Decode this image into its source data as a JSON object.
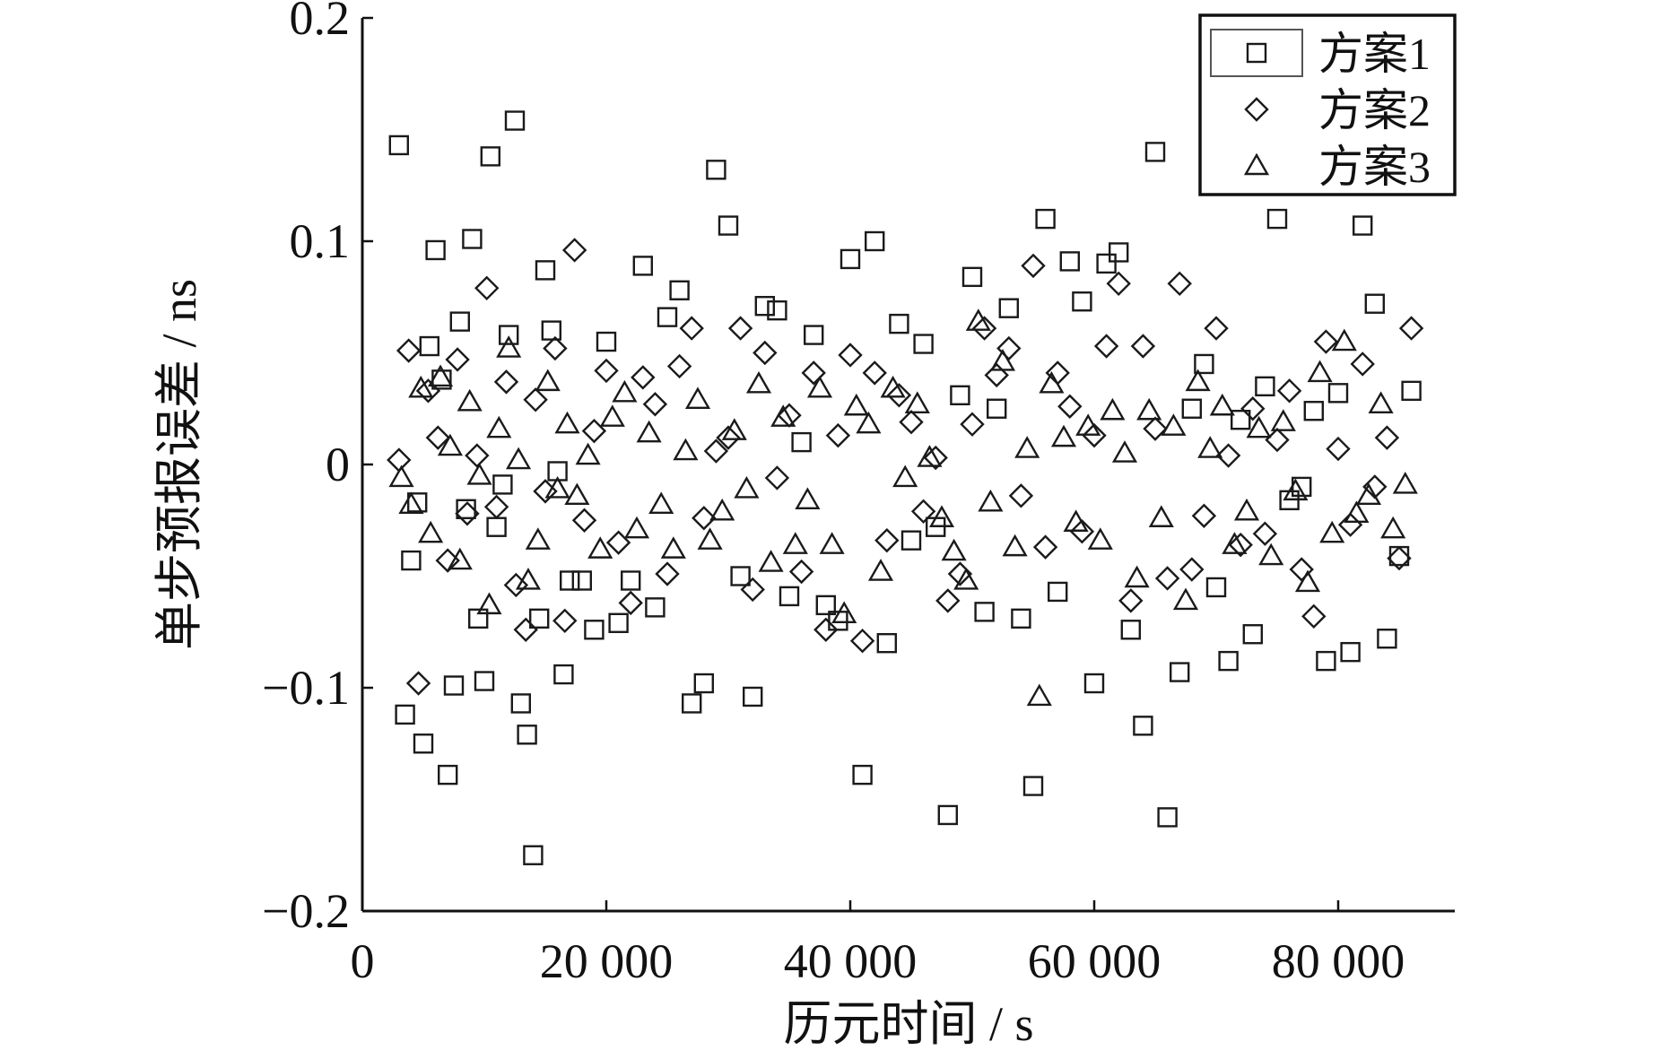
{
  "chart_data": {
    "type": "scatter",
    "title": "",
    "xlabel": "历元时间 / s",
    "ylabel": "单步预报误差 / ns",
    "xlim": [
      0,
      90000
    ],
    "ylim": [
      -0.2,
      0.2
    ],
    "xticks": [
      0,
      20000,
      40000,
      60000,
      80000
    ],
    "xtick_labels": [
      "0",
      "20 000",
      "40 000",
      "60 000",
      "80 000"
    ],
    "yticks": [
      0.2,
      0.1,
      0,
      -0.1,
      -0.2
    ],
    "ytick_labels": [
      "0.2",
      "0.1",
      "0",
      "−0.1",
      "−0.2"
    ],
    "grid": false,
    "legend_position": "top-right",
    "series": [
      {
        "name": "方案1",
        "marker": "square",
        "x": [
          3000,
          3500,
          4000,
          4500,
          5000,
          5500,
          6000,
          6500,
          7000,
          7500,
          8000,
          8500,
          9000,
          9500,
          10000,
          10500,
          11000,
          11500,
          12000,
          12500,
          13000,
          13500,
          14000,
          14500,
          15000,
          15500,
          16000,
          16500,
          17000,
          18000,
          19000,
          20000,
          21000,
          22000,
          23000,
          24000,
          25000,
          26000,
          27000,
          28000,
          29000,
          30000,
          31000,
          32000,
          33000,
          34000,
          35000,
          36000,
          37000,
          38000,
          39000,
          40000,
          41000,
          42000,
          43000,
          44000,
          45000,
          46000,
          47000,
          48000,
          49000,
          50000,
          51000,
          52000,
          53000,
          54000,
          55000,
          56000,
          57000,
          58000,
          59000,
          60000,
          61000,
          62000,
          63000,
          64000,
          65000,
          66000,
          67000,
          68000,
          69000,
          70000,
          71000,
          72000,
          73000,
          74000,
          75000,
          76000,
          77000,
          78000,
          79000,
          80000,
          81000,
          82000,
          83000,
          84000,
          85000,
          86000
        ],
        "y": [
          0.143,
          -0.112,
          -0.043,
          -0.017,
          -0.125,
          0.053,
          0.096,
          0.038,
          -0.139,
          -0.099,
          0.064,
          -0.02,
          0.101,
          -0.069,
          -0.097,
          0.138,
          -0.028,
          -0.009,
          0.058,
          0.154,
          -0.107,
          -0.121,
          -0.175,
          -0.069,
          0.087,
          0.06,
          -0.003,
          -0.094,
          -0.052,
          -0.052,
          -0.074,
          0.055,
          -0.071,
          -0.052,
          0.089,
          -0.064,
          0.066,
          0.078,
          -0.107,
          -0.098,
          0.132,
          0.107,
          -0.05,
          -0.104,
          0.071,
          0.069,
          -0.059,
          0.01,
          0.058,
          -0.063,
          -0.07,
          0.092,
          -0.139,
          0.1,
          -0.08,
          0.063,
          -0.034,
          0.054,
          -0.028,
          -0.157,
          0.031,
          0.084,
          -0.066,
          0.025,
          0.07,
          -0.069,
          -0.144,
          0.11,
          -0.057,
          0.091,
          0.073,
          -0.098,
          0.09,
          0.095,
          -0.074,
          -0.117,
          0.14,
          -0.158,
          -0.093,
          0.025,
          0.045,
          -0.055,
          -0.088,
          0.02,
          -0.076,
          0.035,
          0.11,
          -0.016,
          -0.01,
          0.024,
          -0.088,
          0.032,
          -0.084,
          0.107,
          0.072,
          -0.078,
          -0.041,
          0.033
        ]
      },
      {
        "name": "方案2",
        "marker": "diamond",
        "x": [
          3000,
          3800,
          4600,
          5400,
          6200,
          7000,
          7800,
          8600,
          9400,
          10200,
          11000,
          11800,
          12600,
          13400,
          14200,
          15000,
          15800,
          16600,
          17400,
          18200,
          19000,
          20000,
          21000,
          22000,
          23000,
          24000,
          25000,
          26000,
          27000,
          28000,
          29000,
          30000,
          31000,
          32000,
          33000,
          34000,
          35000,
          36000,
          37000,
          38000,
          39000,
          40000,
          41000,
          42000,
          43000,
          44000,
          45000,
          46000,
          47000,
          48000,
          49000,
          50000,
          51000,
          52000,
          53000,
          54000,
          55000,
          56000,
          57000,
          58000,
          59000,
          60000,
          61000,
          62000,
          63000,
          64000,
          65000,
          66000,
          67000,
          68000,
          69000,
          70000,
          71000,
          72000,
          73000,
          74000,
          75000,
          76000,
          77000,
          78000,
          79000,
          80000,
          81000,
          82000,
          83000,
          84000,
          85000,
          86000
        ],
        "y": [
          0.002,
          0.051,
          -0.098,
          0.033,
          0.012,
          -0.043,
          0.047,
          -0.022,
          0.004,
          0.079,
          -0.019,
          0.037,
          -0.054,
          -0.074,
          0.029,
          -0.012,
          0.052,
          -0.07,
          0.096,
          -0.025,
          0.015,
          0.042,
          -0.035,
          -0.062,
          0.039,
          0.027,
          -0.049,
          0.044,
          0.061,
          -0.024,
          0.006,
          0.012,
          0.061,
          -0.056,
          0.05,
          -0.006,
          0.022,
          -0.048,
          0.041,
          -0.074,
          0.013,
          0.049,
          -0.079,
          0.041,
          -0.034,
          0.031,
          0.019,
          -0.021,
          0.003,
          -0.061,
          -0.049,
          0.018,
          0.061,
          0.04,
          0.052,
          -0.014,
          0.089,
          -0.037,
          0.041,
          0.026,
          -0.03,
          0.013,
          0.053,
          0.081,
          -0.061,
          0.053,
          0.016,
          -0.051,
          0.081,
          -0.047,
          -0.023,
          0.061,
          0.004,
          -0.036,
          0.025,
          -0.031,
          0.011,
          0.033,
          -0.047,
          -0.068,
          0.055,
          0.007,
          -0.027,
          0.045,
          -0.01,
          0.012,
          -0.042,
          0.061
        ]
      },
      {
        "name": "方案3",
        "marker": "triangle",
        "x": [
          3200,
          4000,
          4800,
          5600,
          6400,
          7200,
          8000,
          8800,
          9600,
          10400,
          11200,
          12000,
          12800,
          13600,
          14400,
          15200,
          16000,
          16800,
          17600,
          18500,
          19500,
          20500,
          21500,
          22500,
          23500,
          24500,
          25500,
          26500,
          27500,
          28500,
          29500,
          30500,
          31500,
          32500,
          33500,
          34500,
          35500,
          36500,
          37500,
          38500,
          39500,
          40500,
          41500,
          42500,
          43500,
          44500,
          45500,
          46500,
          47500,
          48500,
          49500,
          50500,
          51500,
          52500,
          53500,
          54500,
          55500,
          56500,
          57500,
          58500,
          59500,
          60500,
          61500,
          62500,
          63500,
          64500,
          65500,
          66500,
          67500,
          68500,
          69500,
          70500,
          71500,
          72500,
          73500,
          74500,
          75500,
          76500,
          77500,
          78500,
          79500,
          80500,
          81500,
          82500,
          83500,
          84500,
          85500
        ],
        "y": [
          -0.006,
          -0.018,
          0.034,
          -0.031,
          0.039,
          0.008,
          -0.043,
          0.028,
          -0.005,
          -0.063,
          0.016,
          0.052,
          0.002,
          -0.052,
          -0.034,
          0.037,
          -0.011,
          0.018,
          -0.014,
          0.004,
          -0.038,
          0.021,
          0.032,
          -0.029,
          0.014,
          -0.018,
          -0.038,
          0.006,
          0.029,
          -0.034,
          -0.021,
          0.015,
          -0.011,
          0.036,
          -0.044,
          0.021,
          -0.036,
          -0.016,
          0.034,
          -0.036,
          -0.067,
          0.026,
          0.018,
          -0.048,
          0.034,
          -0.006,
          0.027,
          0.003,
          -0.024,
          -0.039,
          -0.052,
          0.064,
          -0.017,
          0.046,
          -0.037,
          0.007,
          -0.104,
          0.036,
          0.012,
          -0.026,
          0.017,
          -0.034,
          0.024,
          0.005,
          -0.051,
          0.024,
          -0.024,
          0.017,
          -0.061,
          0.037,
          0.007,
          0.026,
          -0.036,
          -0.021,
          0.016,
          -0.041,
          0.019,
          -0.012,
          -0.053,
          0.041,
          -0.031,
          0.055,
          -0.022,
          -0.014,
          0.027,
          -0.029,
          -0.009
        ]
      }
    ]
  }
}
